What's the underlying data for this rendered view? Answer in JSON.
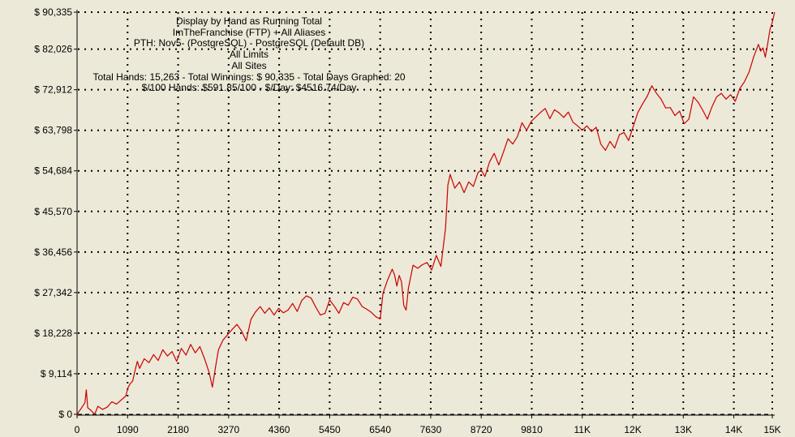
{
  "colors": {
    "background": "#ece9d8",
    "line": "#cc0000",
    "axis": "#000000",
    "grid": "#000000"
  },
  "info": {
    "lines": [
      "Display by Hand as Running Total",
      "ImTheFranchise (FTP) + All Aliases",
      "PTH: Nov5- (PostgreSQL) - PostgreSQL (Default DB)",
      "All Limits",
      "All Sites",
      "Total Hands: 15,263 - Total Winnings: $ 90,335 - Total Days Graphed: 20",
      "$/100 Hands: $591.85/100 - $/Day: $4516.74/Day"
    ]
  },
  "chart_data": {
    "type": "line",
    "title": "Display by Hand as Running Total",
    "xlabel": "",
    "ylabel": "",
    "xlim": [
      0,
      15000
    ],
    "ylim": [
      0,
      90335
    ],
    "grid": true,
    "y_ticks": [
      {
        "value": 0,
        "label": "$ 0"
      },
      {
        "value": 9114,
        "label": "$ 9,114"
      },
      {
        "value": 18228,
        "label": "$ 18,228"
      },
      {
        "value": 27342,
        "label": "$ 27,342"
      },
      {
        "value": 36456,
        "label": "$ 36,456"
      },
      {
        "value": 45570,
        "label": "$ 45,570"
      },
      {
        "value": 54684,
        "label": "$ 54,684"
      },
      {
        "value": 63798,
        "label": "$ 63,798"
      },
      {
        "value": 72912,
        "label": "$ 72,912"
      },
      {
        "value": 82026,
        "label": "$ 82,026"
      },
      {
        "value": 90335,
        "label": "$ 90,335"
      }
    ],
    "x_ticks": [
      {
        "value": 0,
        "label": "0"
      },
      {
        "value": 1090,
        "label": "1090"
      },
      {
        "value": 2180,
        "label": "2180"
      },
      {
        "value": 3270,
        "label": "3270"
      },
      {
        "value": 4360,
        "label": "4360"
      },
      {
        "value": 5450,
        "label": "5450"
      },
      {
        "value": 6540,
        "label": "6540"
      },
      {
        "value": 7630,
        "label": "7630"
      },
      {
        "value": 8720,
        "label": "8720"
      },
      {
        "value": 9810,
        "label": "9810"
      },
      {
        "value": 10900,
        "label": "11K"
      },
      {
        "value": 11990,
        "label": "12K"
      },
      {
        "value": 13080,
        "label": "13K"
      },
      {
        "value": 14170,
        "label": "14K"
      },
      {
        "value": 15000,
        "label": "15K"
      }
    ],
    "series": [
      {
        "points": [
          [
            0,
            0
          ],
          [
            100,
            1500
          ],
          [
            170,
            2600
          ],
          [
            200,
            5500
          ],
          [
            230,
            1500
          ],
          [
            300,
            900
          ],
          [
            380,
            0
          ],
          [
            450,
            1800
          ],
          [
            550,
            1100
          ],
          [
            650,
            1600
          ],
          [
            750,
            2800
          ],
          [
            850,
            2300
          ],
          [
            950,
            3200
          ],
          [
            1050,
            4100
          ],
          [
            1100,
            6000
          ],
          [
            1150,
            6900
          ],
          [
            1200,
            7500
          ],
          [
            1250,
            9800
          ],
          [
            1300,
            11900
          ],
          [
            1350,
            10300
          ],
          [
            1450,
            12500
          ],
          [
            1550,
            11600
          ],
          [
            1650,
            13400
          ],
          [
            1750,
            12100
          ],
          [
            1850,
            14500
          ],
          [
            1950,
            13100
          ],
          [
            2050,
            14100
          ],
          [
            2150,
            11900
          ],
          [
            2250,
            14800
          ],
          [
            2350,
            13300
          ],
          [
            2450,
            15700
          ],
          [
            2550,
            13800
          ],
          [
            2650,
            15200
          ],
          [
            2750,
            12500
          ],
          [
            2850,
            9400
          ],
          [
            2920,
            6100
          ],
          [
            2980,
            10200
          ],
          [
            3050,
            14500
          ],
          [
            3150,
            16700
          ],
          [
            3250,
            17900
          ],
          [
            3350,
            19100
          ],
          [
            3450,
            20200
          ],
          [
            3550,
            18700
          ],
          [
            3650,
            16500
          ],
          [
            3750,
            21300
          ],
          [
            3850,
            23000
          ],
          [
            3950,
            24200
          ],
          [
            4050,
            22700
          ],
          [
            4150,
            23900
          ],
          [
            4250,
            22300
          ],
          [
            4350,
            23800
          ],
          [
            4450,
            22800
          ],
          [
            4550,
            23400
          ],
          [
            4650,
            24900
          ],
          [
            4750,
            23100
          ],
          [
            4850,
            25600
          ],
          [
            4950,
            26600
          ],
          [
            5050,
            26100
          ],
          [
            5150,
            24100
          ],
          [
            5250,
            22300
          ],
          [
            5350,
            22700
          ],
          [
            5450,
            25700
          ],
          [
            5550,
            24300
          ],
          [
            5650,
            22700
          ],
          [
            5750,
            25100
          ],
          [
            5850,
            24500
          ],
          [
            5950,
            26300
          ],
          [
            6050,
            25900
          ],
          [
            6150,
            24200
          ],
          [
            6250,
            23600
          ],
          [
            6350,
            22900
          ],
          [
            6450,
            21900
          ],
          [
            6540,
            21400
          ],
          [
            6600,
            27200
          ],
          [
            6700,
            30200
          ],
          [
            6800,
            32600
          ],
          [
            6850,
            31300
          ],
          [
            6900,
            28800
          ],
          [
            6950,
            31200
          ],
          [
            7000,
            29800
          ],
          [
            7050,
            24400
          ],
          [
            7100,
            23400
          ],
          [
            7150,
            28400
          ],
          [
            7250,
            33500
          ],
          [
            7350,
            32800
          ],
          [
            7450,
            33600
          ],
          [
            7550,
            34100
          ],
          [
            7650,
            32400
          ],
          [
            7750,
            35700
          ],
          [
            7850,
            33200
          ],
          [
            7950,
            41800
          ],
          [
            8000,
            51500
          ],
          [
            8050,
            53900
          ],
          [
            8150,
            50800
          ],
          [
            8250,
            52200
          ],
          [
            8350,
            49800
          ],
          [
            8450,
            52200
          ],
          [
            8550,
            51200
          ],
          [
            8650,
            54300
          ],
          [
            8720,
            54900
          ],
          [
            8800,
            53400
          ],
          [
            8900,
            56700
          ],
          [
            9000,
            58600
          ],
          [
            9100,
            56000
          ],
          [
            9200,
            58900
          ],
          [
            9300,
            61900
          ],
          [
            9400,
            60700
          ],
          [
            9500,
            62400
          ],
          [
            9600,
            65500
          ],
          [
            9700,
            63800
          ],
          [
            9800,
            65800
          ],
          [
            9900,
            66800
          ],
          [
            10000,
            67800
          ],
          [
            10100,
            68700
          ],
          [
            10200,
            66400
          ],
          [
            10300,
            68400
          ],
          [
            10400,
            67700
          ],
          [
            10500,
            66700
          ],
          [
            10600,
            67900
          ],
          [
            10700,
            65600
          ],
          [
            10800,
            64800
          ],
          [
            10900,
            63800
          ],
          [
            11000,
            64800
          ],
          [
            11100,
            63500
          ],
          [
            11200,
            64500
          ],
          [
            11300,
            60700
          ],
          [
            11400,
            59300
          ],
          [
            11500,
            61300
          ],
          [
            11600,
            59800
          ],
          [
            11700,
            62800
          ],
          [
            11800,
            63300
          ],
          [
            11900,
            61500
          ],
          [
            11990,
            64300
          ],
          [
            12100,
            67800
          ],
          [
            12200,
            69700
          ],
          [
            12300,
            71400
          ],
          [
            12400,
            73800
          ],
          [
            12500,
            72100
          ],
          [
            12600,
            70800
          ],
          [
            12700,
            68800
          ],
          [
            12800,
            68900
          ],
          [
            12900,
            67100
          ],
          [
            13000,
            68100
          ],
          [
            13100,
            65300
          ],
          [
            13200,
            66300
          ],
          [
            13300,
            71300
          ],
          [
            13400,
            70100
          ],
          [
            13500,
            68300
          ],
          [
            13600,
            66300
          ],
          [
            13700,
            69100
          ],
          [
            13800,
            71300
          ],
          [
            13900,
            72100
          ],
          [
            14000,
            70800
          ],
          [
            14100,
            71800
          ],
          [
            14200,
            70300
          ],
          [
            14300,
            73200
          ],
          [
            14400,
            74700
          ],
          [
            14500,
            76900
          ],
          [
            14600,
            80300
          ],
          [
            14700,
            83100
          ],
          [
            14750,
            81600
          ],
          [
            14800,
            82300
          ],
          [
            14850,
            80200
          ],
          [
            14900,
            83200
          ],
          [
            14950,
            86400
          ],
          [
            15000,
            88100
          ],
          [
            15050,
            90335
          ]
        ]
      }
    ]
  }
}
